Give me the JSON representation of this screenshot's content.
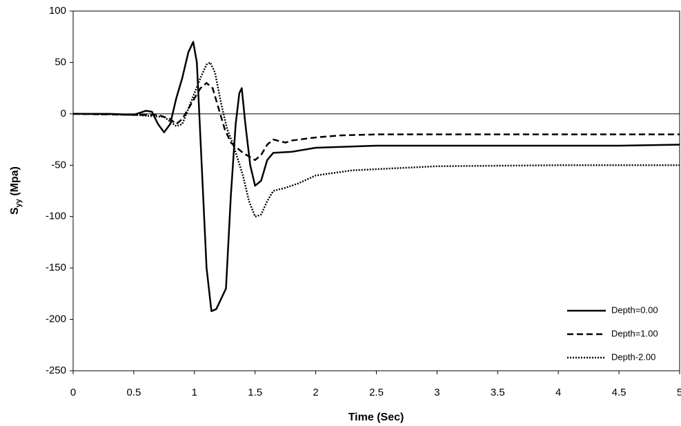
{
  "chart_data": {
    "type": "line",
    "x_label": "Time (Sec)",
    "y_label": [
      "S",
      "yy",
      " (Mpa)"
    ],
    "xlim": [
      0,
      5
    ],
    "xticks": [
      0,
      0.5,
      1,
      1.5,
      2,
      2.5,
      3,
      3.5,
      4,
      4.5,
      5
    ],
    "ylim": [
      -250,
      100
    ],
    "yticks": [
      -250,
      -200,
      -150,
      -100,
      -50,
      0,
      50,
      100
    ],
    "zero_line": true,
    "legend": "lower right",
    "series": [
      {
        "name": "Depth=0.00",
        "color": "#000000",
        "dash": "solid",
        "x": [
          0,
          0.3,
          0.5,
          0.6,
          0.65,
          0.7,
          0.75,
          0.8,
          0.85,
          0.9,
          0.95,
          0.99,
          1.02,
          1.06,
          1.1,
          1.14,
          1.18,
          1.22,
          1.26,
          1.3,
          1.34,
          1.37,
          1.39,
          1.42,
          1.46,
          1.5,
          1.55,
          1.6,
          1.65,
          1.8,
          2.0,
          2.5,
          3,
          4,
          4.5,
          5
        ],
        "values": [
          0,
          0,
          -1,
          3,
          2,
          -10,
          -18,
          -10,
          15,
          35,
          60,
          70,
          50,
          -50,
          -150,
          -192,
          -190,
          -180,
          -170,
          -80,
          -10,
          20,
          25,
          -10,
          -50,
          -70,
          -65,
          -45,
          -38,
          -37,
          -33,
          -31,
          -31,
          -31,
          -31,
          -30
        ]
      },
      {
        "name": "Depth=1.00",
        "color": "#000000",
        "dash": "dashed",
        "x": [
          0,
          0.5,
          0.7,
          0.8,
          0.85,
          0.9,
          0.95,
          1.0,
          1.05,
          1.1,
          1.15,
          1.2,
          1.25,
          1.3,
          1.4,
          1.5,
          1.55,
          1.6,
          1.65,
          1.75,
          1.8,
          2,
          2.2,
          2.5,
          3,
          4,
          5
        ],
        "values": [
          0,
          -1,
          -1,
          -5,
          -10,
          -5,
          5,
          15,
          25,
          30,
          25,
          5,
          -15,
          -28,
          -38,
          -45,
          -40,
          -30,
          -25,
          -28,
          -26,
          -23,
          -21,
          -20,
          -20,
          -20,
          -20
        ]
      },
      {
        "name": "Depth-2.00",
        "color": "#000000",
        "dash": "dotted",
        "x": [
          0,
          0.5,
          0.75,
          0.85,
          0.9,
          0.95,
          1.0,
          1.05,
          1.1,
          1.13,
          1.17,
          1.22,
          1.27,
          1.32,
          1.4,
          1.45,
          1.5,
          1.55,
          1.6,
          1.65,
          1.75,
          1.85,
          2,
          2.3,
          3,
          4,
          5
        ],
        "values": [
          0,
          -1,
          -3,
          -12,
          -10,
          5,
          20,
          35,
          48,
          50,
          40,
          10,
          -15,
          -30,
          -60,
          -85,
          -100,
          -98,
          -85,
          -75,
          -72,
          -68,
          -60,
          -55,
          -51,
          -50,
          -50
        ]
      }
    ]
  }
}
